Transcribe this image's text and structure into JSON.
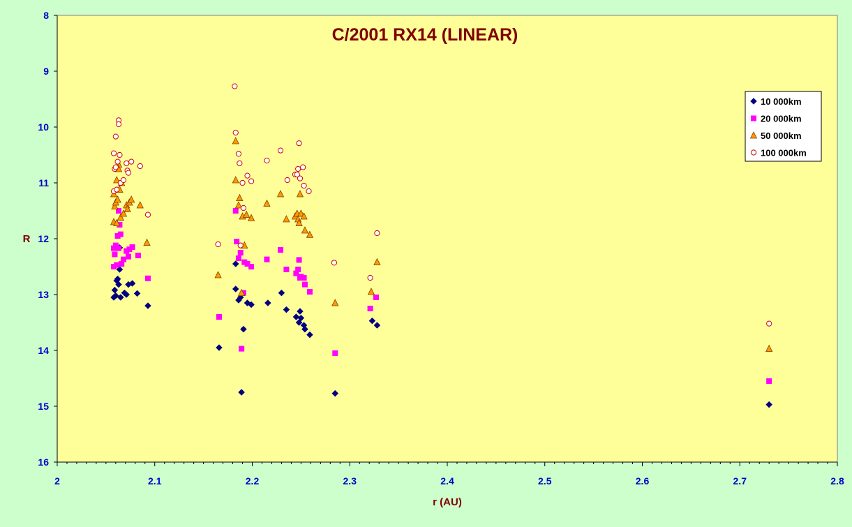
{
  "chart_data": {
    "type": "scatter",
    "title": "C/2001 RX14 (LINEAR)",
    "xlabel": "r (AU)",
    "ylabel": "R",
    "xlim": [
      2,
      2.8
    ],
    "ylim": [
      8,
      16
    ],
    "y_inverted": true,
    "x_ticks": [
      "2",
      "2.1",
      "2.2",
      "2.3",
      "2.4",
      "2.5",
      "2.6",
      "2.7",
      "2.8"
    ],
    "y_ticks": [
      "8",
      "9",
      "10",
      "11",
      "12",
      "13",
      "14",
      "15",
      "16"
    ],
    "grid": false,
    "legend_position": "right",
    "colors": {
      "plot_bg": "#ffff99",
      "page_bg": "#ccffcc",
      "title": "#800000",
      "axis_label": "#800000",
      "tick_label": "#0000cc"
    },
    "series": [
      {
        "name": "10 000km",
        "marker": "diamond",
        "color": "#000080",
        "points": [
          [
            2.058,
            13.05
          ],
          [
            2.059,
            12.92
          ],
          [
            2.06,
            13.02
          ],
          [
            2.061,
            12.75
          ],
          [
            2.062,
            12.72
          ],
          [
            2.063,
            12.82
          ],
          [
            2.064,
            12.16
          ],
          [
            2.064,
            12.55
          ],
          [
            2.065,
            13.05
          ],
          [
            2.069,
            12.97
          ],
          [
            2.071,
            13.0
          ],
          [
            2.073,
            12.82
          ],
          [
            2.077,
            12.8
          ],
          [
            2.082,
            12.98
          ],
          [
            2.093,
            13.2
          ],
          [
            2.166,
            13.95
          ],
          [
            2.183,
            12.45
          ],
          [
            2.183,
            12.9
          ],
          [
            2.186,
            13.1
          ],
          [
            2.188,
            13.05
          ],
          [
            2.189,
            14.75
          ],
          [
            2.191,
            13.62
          ],
          [
            2.195,
            13.15
          ],
          [
            2.199,
            13.18
          ],
          [
            2.216,
            13.15
          ],
          [
            2.23,
            12.97
          ],
          [
            2.235,
            13.27
          ],
          [
            2.245,
            13.4
          ],
          [
            2.248,
            13.5
          ],
          [
            2.249,
            13.3
          ],
          [
            2.25,
            13.42
          ],
          [
            2.253,
            13.55
          ],
          [
            2.254,
            13.62
          ],
          [
            2.259,
            13.72
          ],
          [
            2.285,
            14.77
          ],
          [
            2.323,
            13.47
          ],
          [
            2.328,
            13.55
          ],
          [
            2.73,
            14.97
          ]
        ]
      },
      {
        "name": "20 000km",
        "marker": "square",
        "color": "#ff00ff",
        "points": [
          [
            2.058,
            12.17
          ],
          [
            2.058,
            12.5
          ],
          [
            2.059,
            12.28
          ],
          [
            2.06,
            12.12
          ],
          [
            2.061,
            12.47
          ],
          [
            2.062,
            11.95
          ],
          [
            2.063,
            12.17
          ],
          [
            2.063,
            11.5
          ],
          [
            2.064,
            11.75
          ],
          [
            2.065,
            11.92
          ],
          [
            2.066,
            12.45
          ],
          [
            2.068,
            12.37
          ],
          [
            2.071,
            12.22
          ],
          [
            2.073,
            12.32
          ],
          [
            2.074,
            12.19
          ],
          [
            2.077,
            12.15
          ],
          [
            2.083,
            12.3
          ],
          [
            2.093,
            12.71
          ],
          [
            2.166,
            13.4
          ],
          [
            2.183,
            11.5
          ],
          [
            2.184,
            12.05
          ],
          [
            2.186,
            12.35
          ],
          [
            2.188,
            12.25
          ],
          [
            2.189,
            13.97
          ],
          [
            2.191,
            12.97
          ],
          [
            2.192,
            12.42
          ],
          [
            2.195,
            12.45
          ],
          [
            2.199,
            12.5
          ],
          [
            2.215,
            12.37
          ],
          [
            2.229,
            12.2
          ],
          [
            2.235,
            12.55
          ],
          [
            2.245,
            12.62
          ],
          [
            2.247,
            12.55
          ],
          [
            2.248,
            12.38
          ],
          [
            2.249,
            12.7
          ],
          [
            2.25,
            12.68
          ],
          [
            2.253,
            12.7
          ],
          [
            2.254,
            12.82
          ],
          [
            2.259,
            12.95
          ],
          [
            2.285,
            14.05
          ],
          [
            2.321,
            13.25
          ],
          [
            2.327,
            13.05
          ],
          [
            2.73,
            14.55
          ]
        ]
      },
      {
        "name": "50 000km",
        "marker": "triangle",
        "color": "#ff9900",
        "points": [
          [
            2.058,
            11.2
          ],
          [
            2.058,
            11.7
          ],
          [
            2.059,
            11.42
          ],
          [
            2.06,
            11.35
          ],
          [
            2.061,
            11.72
          ],
          [
            2.061,
            10.95
          ],
          [
            2.062,
            11.3
          ],
          [
            2.063,
            10.67
          ],
          [
            2.063,
            10.75
          ],
          [
            2.064,
            11.12
          ],
          [
            2.065,
            11.62
          ],
          [
            2.066,
            11.0
          ],
          [
            2.068,
            11.55
          ],
          [
            2.071,
            11.4
          ],
          [
            2.072,
            11.47
          ],
          [
            2.074,
            11.35
          ],
          [
            2.076,
            11.3
          ],
          [
            2.085,
            11.4
          ],
          [
            2.092,
            12.07
          ],
          [
            2.165,
            12.65
          ],
          [
            2.183,
            10.95
          ],
          [
            2.183,
            10.25
          ],
          [
            2.186,
            11.4
          ],
          [
            2.187,
            11.27
          ],
          [
            2.189,
            12.97
          ],
          [
            2.19,
            11.6
          ],
          [
            2.192,
            12.12
          ],
          [
            2.194,
            11.57
          ],
          [
            2.199,
            11.63
          ],
          [
            2.215,
            11.37
          ],
          [
            2.229,
            11.2
          ],
          [
            2.235,
            11.65
          ],
          [
            2.244,
            11.6
          ],
          [
            2.246,
            11.55
          ],
          [
            2.247,
            11.65
          ],
          [
            2.248,
            11.72
          ],
          [
            2.249,
            11.2
          ],
          [
            2.25,
            11.55
          ],
          [
            2.253,
            11.6
          ],
          [
            2.254,
            11.85
          ],
          [
            2.259,
            11.93
          ],
          [
            2.285,
            13.15
          ],
          [
            2.322,
            12.95
          ],
          [
            2.328,
            12.42
          ],
          [
            2.73,
            13.97
          ]
        ]
      },
      {
        "name": "100 000km",
        "marker": "circle",
        "color": "#cc0000",
        "points": [
          [
            2.058,
            10.47
          ],
          [
            2.058,
            11.15
          ],
          [
            2.059,
            10.75
          ],
          [
            2.06,
            10.72
          ],
          [
            2.06,
            10.17
          ],
          [
            2.061,
            11.12
          ],
          [
            2.062,
            10.62
          ],
          [
            2.063,
            9.88
          ],
          [
            2.063,
            9.95
          ],
          [
            2.064,
            10.5
          ],
          [
            2.065,
            11.0
          ],
          [
            2.068,
            10.95
          ],
          [
            2.071,
            10.65
          ],
          [
            2.072,
            10.78
          ],
          [
            2.073,
            10.82
          ],
          [
            2.076,
            10.62
          ],
          [
            2.085,
            10.7
          ],
          [
            2.093,
            11.57
          ],
          [
            2.165,
            12.1
          ],
          [
            2.182,
            9.27
          ],
          [
            2.183,
            10.1
          ],
          [
            2.186,
            10.48
          ],
          [
            2.187,
            10.65
          ],
          [
            2.188,
            12.12
          ],
          [
            2.19,
            11.0
          ],
          [
            2.191,
            11.45
          ],
          [
            2.195,
            10.87
          ],
          [
            2.199,
            10.97
          ],
          [
            2.215,
            10.6
          ],
          [
            2.229,
            10.42
          ],
          [
            2.236,
            10.95
          ],
          [
            2.244,
            10.85
          ],
          [
            2.246,
            10.85
          ],
          [
            2.247,
            10.75
          ],
          [
            2.248,
            10.29
          ],
          [
            2.249,
            10.92
          ],
          [
            2.252,
            10.72
          ],
          [
            2.253,
            11.05
          ],
          [
            2.258,
            11.15
          ],
          [
            2.284,
            12.43
          ],
          [
            2.321,
            12.7
          ],
          [
            2.328,
            11.9
          ],
          [
            2.73,
            13.52
          ]
        ]
      }
    ]
  }
}
